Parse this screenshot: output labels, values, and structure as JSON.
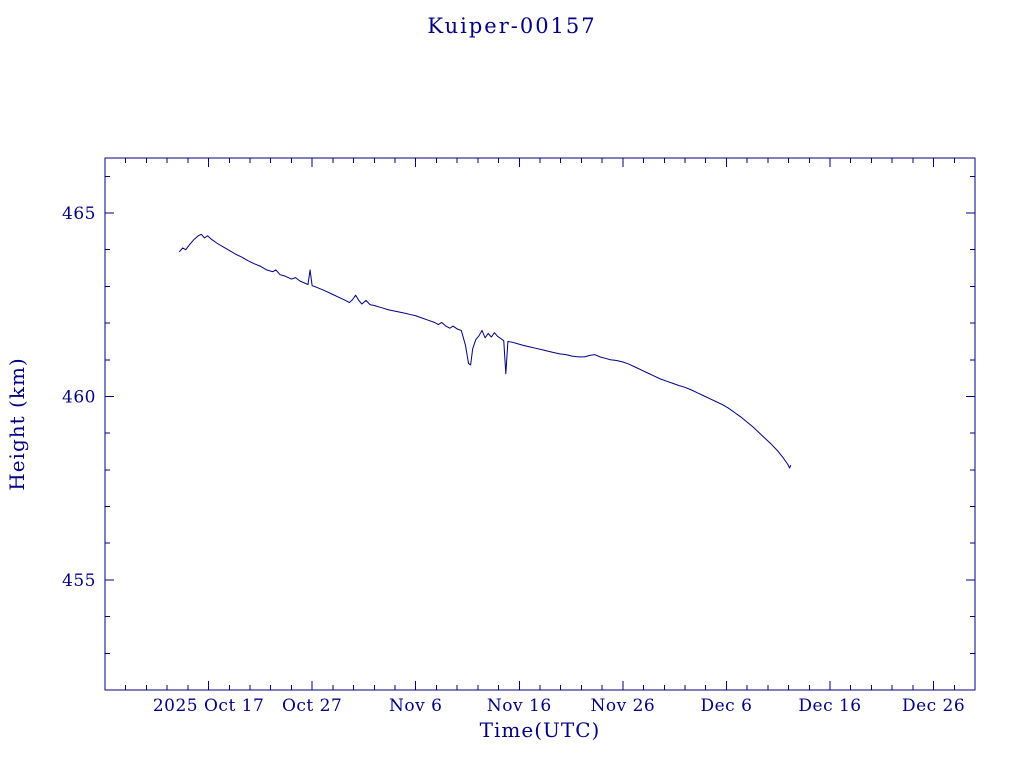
{
  "chart_data": {
    "type": "line",
    "title": "Kuiper-00157",
    "xlabel": "Time(UTC)",
    "ylabel": "Height (km)",
    "line_color": "#000080",
    "text_color": "#000080",
    "background_color": "#ffffff",
    "x_unit": "days since 2025-10-01",
    "xlim": [
      6,
      90
    ],
    "ylim": [
      452,
      466.5
    ],
    "x_minor_step": 2,
    "y_minor_step": 1,
    "x_ticks": [
      {
        "pos": 16,
        "label": "2025 Oct 17"
      },
      {
        "pos": 26,
        "label": "Oct 27"
      },
      {
        "pos": 36,
        "label": "Nov 6"
      },
      {
        "pos": 46,
        "label": "Nov 16"
      },
      {
        "pos": 56,
        "label": "Nov 26"
      },
      {
        "pos": 66,
        "label": "Dec 6"
      },
      {
        "pos": 76,
        "label": "Dec 16"
      },
      {
        "pos": 86,
        "label": "Dec 26"
      }
    ],
    "y_ticks": [
      {
        "pos": 455,
        "label": "455"
      },
      {
        "pos": 460,
        "label": "460"
      },
      {
        "pos": 465,
        "label": "465"
      }
    ],
    "series": [
      {
        "name": "height",
        "points": [
          [
            13.2,
            463.95
          ],
          [
            13.5,
            464.05
          ],
          [
            13.8,
            464.0
          ],
          [
            14.2,
            464.15
          ],
          [
            14.6,
            464.28
          ],
          [
            15.0,
            464.38
          ],
          [
            15.3,
            464.42
          ],
          [
            15.6,
            464.32
          ],
          [
            15.9,
            464.38
          ],
          [
            16.3,
            464.28
          ],
          [
            16.8,
            464.18
          ],
          [
            17.4,
            464.08
          ],
          [
            18.0,
            463.98
          ],
          [
            18.6,
            463.88
          ],
          [
            19.2,
            463.8
          ],
          [
            19.8,
            463.7
          ],
          [
            20.4,
            463.62
          ],
          [
            21.0,
            463.55
          ],
          [
            21.6,
            463.45
          ],
          [
            22.2,
            463.4
          ],
          [
            22.5,
            463.45
          ],
          [
            22.9,
            463.32
          ],
          [
            23.4,
            463.28
          ],
          [
            24.0,
            463.2
          ],
          [
            24.4,
            463.24
          ],
          [
            24.8,
            463.15
          ],
          [
            25.2,
            463.1
          ],
          [
            25.6,
            463.05
          ],
          [
            25.8,
            463.45
          ],
          [
            26.0,
            463.02
          ],
          [
            26.4,
            462.98
          ],
          [
            26.9,
            462.92
          ],
          [
            27.4,
            462.86
          ],
          [
            28.0,
            462.78
          ],
          [
            28.6,
            462.7
          ],
          [
            29.2,
            462.62
          ],
          [
            29.6,
            462.56
          ],
          [
            29.9,
            462.64
          ],
          [
            30.2,
            462.76
          ],
          [
            30.5,
            462.62
          ],
          [
            30.8,
            462.52
          ],
          [
            31.2,
            462.62
          ],
          [
            31.6,
            462.5
          ],
          [
            32.0,
            462.48
          ],
          [
            32.7,
            462.42
          ],
          [
            33.4,
            462.36
          ],
          [
            34.1,
            462.32
          ],
          [
            34.8,
            462.28
          ],
          [
            35.4,
            462.24
          ],
          [
            36.0,
            462.2
          ],
          [
            36.6,
            462.14
          ],
          [
            37.2,
            462.08
          ],
          [
            37.8,
            462.02
          ],
          [
            38.2,
            461.96
          ],
          [
            38.5,
            462.02
          ],
          [
            38.9,
            461.92
          ],
          [
            39.3,
            461.86
          ],
          [
            39.6,
            461.92
          ],
          [
            40.0,
            461.84
          ],
          [
            40.4,
            461.8
          ],
          [
            40.8,
            461.4
          ],
          [
            41.1,
            460.9
          ],
          [
            41.3,
            460.86
          ],
          [
            41.5,
            461.3
          ],
          [
            41.8,
            461.55
          ],
          [
            42.1,
            461.65
          ],
          [
            42.4,
            461.8
          ],
          [
            42.7,
            461.6
          ],
          [
            43.0,
            461.72
          ],
          [
            43.3,
            461.62
          ],
          [
            43.6,
            461.74
          ],
          [
            43.9,
            461.64
          ],
          [
            44.2,
            461.58
          ],
          [
            44.5,
            461.52
          ],
          [
            44.7,
            460.62
          ],
          [
            44.9,
            461.5
          ],
          [
            45.3,
            461.48
          ],
          [
            45.8,
            461.44
          ],
          [
            46.3,
            461.4
          ],
          [
            46.9,
            461.36
          ],
          [
            47.5,
            461.32
          ],
          [
            48.1,
            461.28
          ],
          [
            48.7,
            461.24
          ],
          [
            49.3,
            461.2
          ],
          [
            49.9,
            461.16
          ],
          [
            50.5,
            461.14
          ],
          [
            51.1,
            461.1
          ],
          [
            51.7,
            461.08
          ],
          [
            52.3,
            461.08
          ],
          [
            52.8,
            461.12
          ],
          [
            53.3,
            461.14
          ],
          [
            53.8,
            461.08
          ],
          [
            54.3,
            461.04
          ],
          [
            54.8,
            461.0
          ],
          [
            55.4,
            460.98
          ],
          [
            56.0,
            460.94
          ],
          [
            56.6,
            460.88
          ],
          [
            57.2,
            460.8
          ],
          [
            57.8,
            460.72
          ],
          [
            58.4,
            460.64
          ],
          [
            59.0,
            460.56
          ],
          [
            59.6,
            460.48
          ],
          [
            60.2,
            460.42
          ],
          [
            60.8,
            460.36
          ],
          [
            61.4,
            460.3
          ],
          [
            62.0,
            460.25
          ],
          [
            62.6,
            460.18
          ],
          [
            63.2,
            460.1
          ],
          [
            63.8,
            460.02
          ],
          [
            64.4,
            459.94
          ],
          [
            65.0,
            459.86
          ],
          [
            65.6,
            459.78
          ],
          [
            66.2,
            459.68
          ],
          [
            66.8,
            459.56
          ],
          [
            67.4,
            459.44
          ],
          [
            68.0,
            459.3
          ],
          [
            68.6,
            459.16
          ],
          [
            69.2,
            459.0
          ],
          [
            69.8,
            458.84
          ],
          [
            70.4,
            458.68
          ],
          [
            71.0,
            458.5
          ],
          [
            71.5,
            458.32
          ],
          [
            71.9,
            458.16
          ],
          [
            72.1,
            458.05
          ],
          [
            72.2,
            458.12
          ]
        ]
      }
    ]
  }
}
